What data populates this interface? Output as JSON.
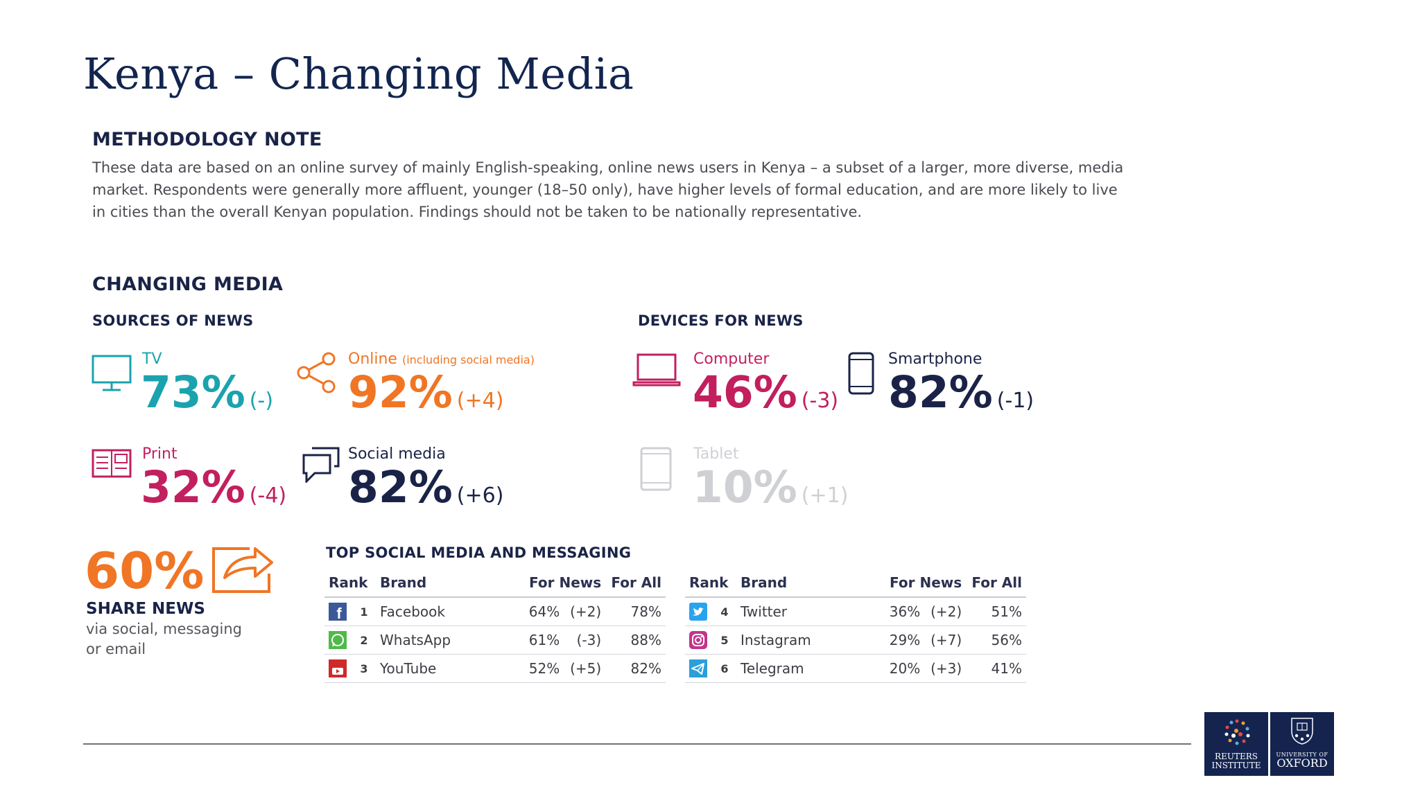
{
  "title": "Kenya – Changing Media",
  "methodology": {
    "heading": "METHODOLOGY NOTE",
    "lines": [
      "These data are based on an online survey of mainly English-speaking, online news users in Kenya – a subset of a larger, more diverse, media",
      "market. Respondents were generally more affluent, younger (18–50 only), have higher levels of formal education, and are more likely to live",
      "in cities than the overall Kenyan population. Findings should not be taken to be nationally representative."
    ]
  },
  "changing_media": {
    "heading": "CHANGING MEDIA",
    "sources": {
      "heading": "SOURCES OF NEWS",
      "items": [
        {
          "label": "TV",
          "note": "",
          "value": "73%",
          "change": "(-)",
          "color": "#1aa3ae",
          "icon": "tv-icon"
        },
        {
          "label": "Online",
          "note": "(including social media)",
          "value": "92%",
          "change": "(+4)",
          "color": "#f07524",
          "icon": "share-network-icon"
        },
        {
          "label": "Print",
          "note": "",
          "value": "32%",
          "change": "(-4)",
          "color": "#c21f5e",
          "icon": "newspaper-icon"
        },
        {
          "label": "Social media",
          "note": "",
          "value": "82%",
          "change": "(+6)",
          "color": "#1a2347",
          "icon": "speech-bubbles-icon"
        }
      ]
    },
    "devices": {
      "heading": "DEVICES FOR NEWS",
      "items": [
        {
          "label": "Computer",
          "value": "46%",
          "change": "(-3)",
          "color": "#c21f5e",
          "icon": "laptop-icon"
        },
        {
          "label": "Smartphone",
          "value": "82%",
          "change": "(-1)",
          "color": "#1a2347",
          "icon": "smartphone-icon"
        },
        {
          "label": "Tablet",
          "value": "10%",
          "change": "(+1)",
          "color": "#cfd0d4",
          "icon": "tablet-icon"
        }
      ]
    },
    "share": {
      "value": "60%",
      "title": "SHARE NEWS",
      "subtitle_lines": [
        "via social, messaging",
        "or email"
      ],
      "icon": "share-arrow-icon"
    },
    "top_social": {
      "heading": "TOP SOCIAL MEDIA AND MESSAGING",
      "columns": [
        "Rank",
        "Brand",
        "For News",
        "For All"
      ],
      "rows": [
        {
          "rank": "1",
          "brand": "Facebook",
          "for_news": "64%",
          "change": "(+2)",
          "for_all": "78%",
          "icon": "facebook-icon",
          "color": "#3b5998"
        },
        {
          "rank": "2",
          "brand": "WhatsApp",
          "for_news": "61%",
          "change": "(-3)",
          "for_all": "88%",
          "icon": "whatsapp-icon",
          "color": "#4fb94a"
        },
        {
          "rank": "3",
          "brand": "YouTube",
          "for_news": "52%",
          "change": "(+5)",
          "for_all": "82%",
          "icon": "youtube-icon",
          "color": "#cf2a2a"
        },
        {
          "rank": "4",
          "brand": "Twitter",
          "for_news": "36%",
          "change": "(+2)",
          "for_all": "51%",
          "icon": "twitter-icon",
          "color": "#2aa3ef"
        },
        {
          "rank": "5",
          "brand": "Instagram",
          "for_news": "29%",
          "change": "(+7)",
          "for_all": "56%",
          "icon": "instagram-icon",
          "color": "#c1358a"
        },
        {
          "rank": "6",
          "brand": "Telegram",
          "for_news": "20%",
          "change": "(+3)",
          "for_all": "41%",
          "icon": "telegram-icon",
          "color": "#2c9fd9"
        }
      ]
    }
  },
  "logos": {
    "reuters": [
      "REUTERS",
      "INSTITUTE"
    ],
    "oxford": [
      "UNIVERSITY OF",
      "OXFORD"
    ]
  }
}
